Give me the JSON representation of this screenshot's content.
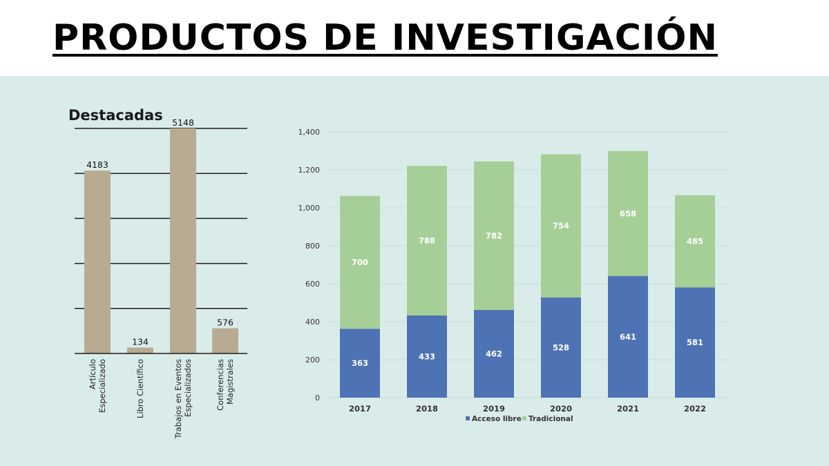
{
  "page": {
    "title": "PRODUCTOS DE INVESTIGACIÓN"
  },
  "colors": {
    "bar_tan": "#b8ab91",
    "acceso_libre": "#4e73b4",
    "tradicional": "#a5cf96",
    "background_panel": "#daecea"
  },
  "chart_data": [
    {
      "type": "bar",
      "title": "Destacadas",
      "categories": [
        [
          "Artículo",
          "Especializado"
        ],
        [
          "Libro Científico"
        ],
        [
          "Trabajos en Eventos",
          "Especializados"
        ],
        [
          "Conferencias",
          "Magistrales"
        ]
      ],
      "values": [
        4183,
        134,
        5148,
        576
      ],
      "ylim": [
        0,
        5148
      ],
      "grid": true,
      "legend": "none"
    },
    {
      "type": "bar",
      "stacked": true,
      "categories": [
        "2017",
        "2018",
        "2019",
        "2020",
        "2021",
        "2022"
      ],
      "series": [
        {
          "name": "Acceso libre",
          "values": [
            363,
            433,
            462,
            528,
            641,
            581
          ]
        },
        {
          "name": "Tradicional",
          "values": [
            700,
            788,
            782,
            754,
            658,
            485
          ]
        }
      ],
      "ylim": [
        0,
        1400
      ],
      "yticks": [
        0,
        200,
        400,
        600,
        800,
        1000,
        1200,
        1400
      ],
      "ytick_labels": [
        "0",
        "200",
        "400",
        "600",
        "800",
        "1,000",
        "1,200",
        "1,400"
      ],
      "grid": true,
      "legend": "bottom"
    }
  ]
}
